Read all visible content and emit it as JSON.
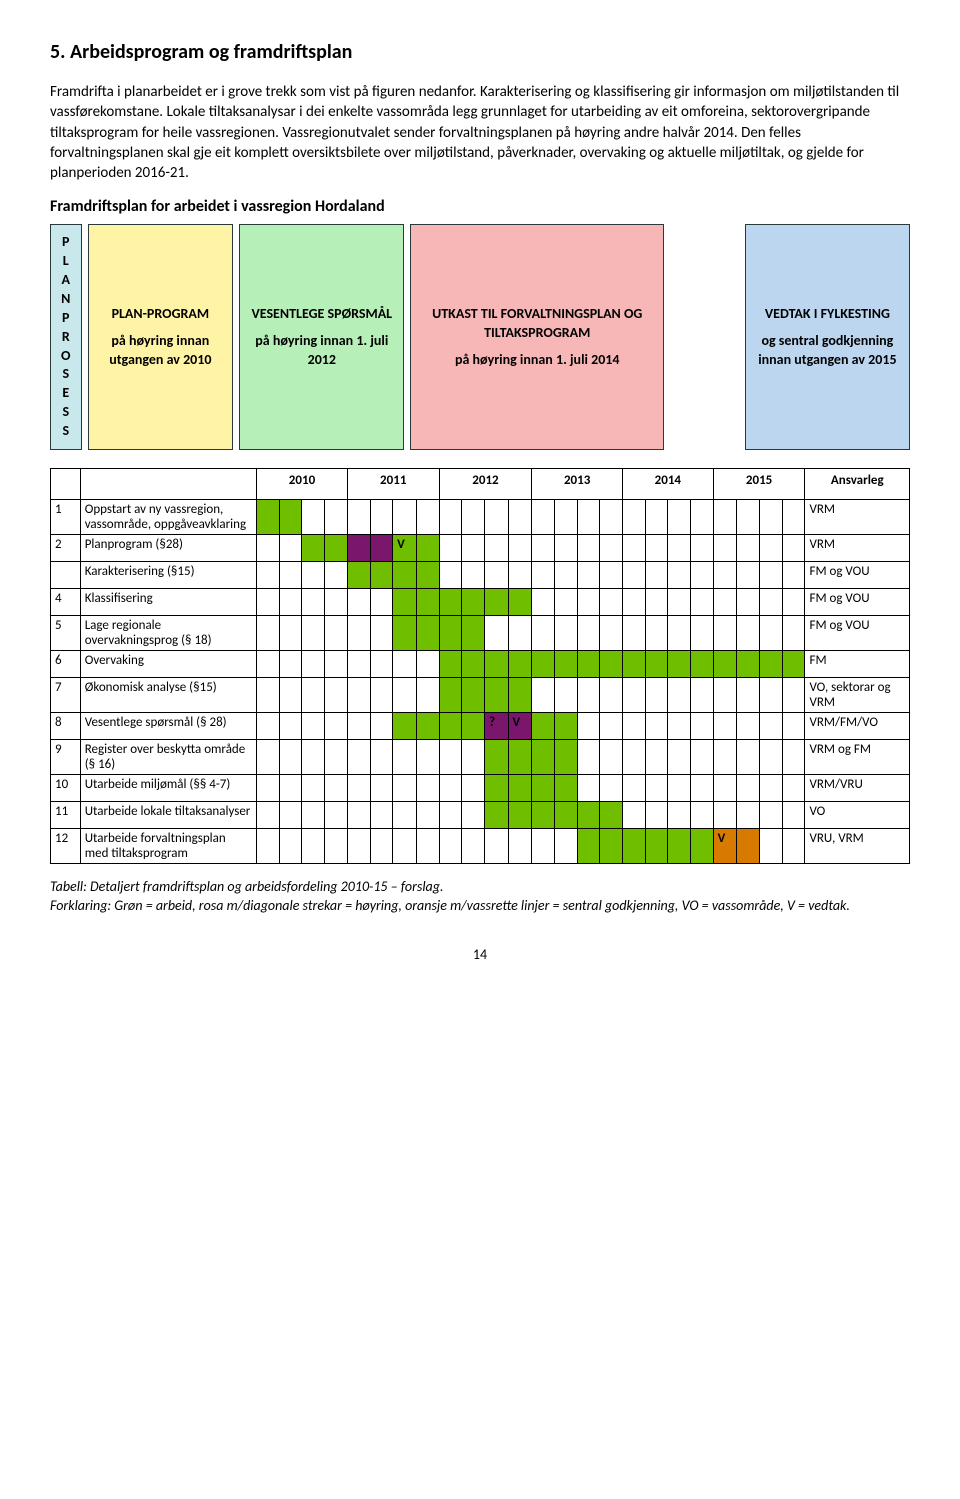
{
  "heading": "5. Arbeidsprogram og framdriftsplan",
  "intro": "Framdrifta i planarbeidet er i grove trekk som vist på figuren nedanfor. Karakterisering og klassifisering gir informasjon om miljøtilstanden til vassførekomstane. Lokale tiltaksanalysar i dei enkelte vassområda legg grunnlaget for utarbeiding av eit omforeina, sektorovergripande tiltaksprogram for heile vassregionen. Vassregionutvalet sender forvaltningsplanen på høyring andre halvår 2014. Den felles forvaltningsplanen skal gje eit komplett oversiktsbilete over miljøtilstand, påverknader, overvaking og aktuelle miljøtiltak, og gjelde for planperioden 2016-21.",
  "section_title": "Framdriftsplan for arbeidet i vassregion Hordaland",
  "flow": {
    "vertical": "PLANPROSESS",
    "a": {
      "title": "PLAN-PROGRAM",
      "sub": "på høyring innan utgangen av 2010"
    },
    "b": {
      "title": "VESENTLEGE SPØRSMÅL",
      "sub": "på høyring innan 1. juli 2012",
      "underline": "1"
    },
    "c": {
      "title": "UTKAST TIL FORVALTNINGSPLAN OG TILTAKSPROGRAM",
      "sub": "på høyring innan 1. juli 2014"
    },
    "d": {
      "title": "VEDTAK I FYLKESTING",
      "sub": "og sentral godkjenning innan utgangen av 2015"
    }
  },
  "gantt": {
    "years": [
      "2010",
      "2011",
      "2012",
      "2013",
      "2014",
      "2015"
    ],
    "ans_header": "Ansvarleg",
    "rows": [
      {
        "n": "1",
        "task": "Oppstart av ny vassregion, vassområde, oppgåveavklaring",
        "ans": "VRM",
        "cells": [
          "g",
          "g",
          "",
          "",
          "",
          "",
          "",
          "",
          "",
          "",
          "",
          "",
          "",
          "",
          "",
          "",
          "",
          "",
          "",
          "",
          "",
          "",
          "",
          ""
        ]
      },
      {
        "n": "2",
        "task": "Planprogram (§28)",
        "ans": "VRM",
        "cells": [
          "",
          "",
          "g",
          "g",
          "p",
          "p",
          "Vg",
          "g",
          "",
          "",
          "",
          "",
          "",
          "",
          "",
          "",
          "",
          "",
          "",
          "",
          "",
          "",
          "",
          ""
        ]
      },
      {
        "n": "",
        "task": "Karakterisering (§15)",
        "ans": "FM og VOU",
        "cells": [
          "",
          "",
          "",
          "",
          "g",
          "g",
          "g",
          "g",
          "",
          "",
          "",
          "",
          "",
          "",
          "",
          "",
          "",
          "",
          "",
          "",
          "",
          "",
          "",
          ""
        ]
      },
      {
        "n": "4",
        "task": "Klassifisering",
        "ans": "FM og VOU",
        "cells": [
          "",
          "",
          "",
          "",
          "",
          "",
          "g",
          "g",
          "g",
          "g",
          "g",
          "g",
          "",
          "",
          "",
          "",
          "",
          "",
          "",
          "",
          "",
          "",
          "",
          ""
        ]
      },
      {
        "n": "5",
        "task": "Lage regionale overvakningsprog (§ 18)",
        "ans": "FM og VOU",
        "cells": [
          "",
          "",
          "",
          "",
          "",
          "",
          "g",
          "g",
          "g",
          "g",
          "",
          "",
          "",
          "",
          "",
          "",
          "",
          "",
          "",
          "",
          "",
          "",
          "",
          ""
        ]
      },
      {
        "n": "6",
        "task": "Overvaking",
        "ans": "FM",
        "cells": [
          "",
          "",
          "",
          "",
          "",
          "",
          "",
          "",
          "g",
          "g",
          "g",
          "g",
          "g",
          "g",
          "g",
          "g",
          "g",
          "g",
          "g",
          "g",
          "g",
          "g",
          "g",
          "g"
        ]
      },
      {
        "n": "7",
        "task": "Økonomisk analyse (§15)",
        "ans": "VO, sektorar og VRM",
        "cells": [
          "",
          "",
          "",
          "",
          "",
          "",
          "",
          "",
          "g",
          "g",
          "g",
          "g",
          "",
          "",
          "",
          "",
          "",
          "",
          "",
          "",
          "",
          "",
          "",
          ""
        ]
      },
      {
        "n": "8",
        "task": "Vesentlege spørsmål (§ 28)",
        "ans": "VRM/FM/VO",
        "cells": [
          "",
          "",
          "",
          "",
          "",
          "",
          "g",
          "g",
          "g",
          "g",
          "p?",
          "Vp",
          "g",
          "g",
          "",
          "",
          "",
          "",
          "",
          "",
          "",
          "",
          "",
          ""
        ]
      },
      {
        "n": "9",
        "task": "Register over beskytta område (§ 16)",
        "ans": "VRM og FM",
        "cells": [
          "",
          "",
          "",
          "",
          "",
          "",
          "",
          "",
          "",
          "",
          "g",
          "g",
          "g",
          "g",
          "",
          "",
          "",
          "",
          "",
          "",
          "",
          "",
          "",
          ""
        ]
      },
      {
        "n": "10",
        "task": "Utarbeide miljømål (§§ 4-7)",
        "ans": "VRM/VRU",
        "cells": [
          "",
          "",
          "",
          "",
          "",
          "",
          "",
          "",
          "",
          "",
          "g",
          "g",
          "g",
          "g",
          "",
          "",
          "",
          "",
          "",
          "",
          "",
          "",
          "",
          ""
        ]
      },
      {
        "n": "11",
        "task": "Utarbeide lokale tiltaksanalyser",
        "ans": "VO",
        "cells": [
          "",
          "",
          "",
          "",
          "",
          "",
          "",
          "",
          "",
          "",
          "g",
          "g",
          "g",
          "g",
          "g",
          "g",
          "",
          "",
          "",
          "",
          "",
          "",
          "",
          ""
        ]
      },
      {
        "n": "12",
        "task": "Utarbeide forvaltningsplan med tiltaksprogram",
        "ans": "VRU, VRM",
        "cells": [
          "",
          "",
          "",
          "",
          "",
          "",
          "",
          "",
          "",
          "",
          "",
          "",
          "",
          "",
          "g",
          "g",
          "g",
          "g",
          "g",
          "g",
          "Vo",
          "o",
          "",
          ""
        ]
      }
    ]
  },
  "caption": "Tabell: Detaljert framdriftsplan og arbeidsfordeling 2010-15 – forslag.\nForklaring: Grøn = arbeid, rosa m/diagonale strekar = høyring, oransje m/vassrette linjer = sentral godkjenning, VO = vassområde, V = vedtak.",
  "page": "14",
  "colors": {
    "green": "#6fbf00",
    "purple": "#7a176d",
    "orange": "#d97a00",
    "flow_v": "#c8e8ec",
    "flow_a": "#fff4a6",
    "flow_b": "#b7efb8",
    "flow_c": "#f7b7b7",
    "flow_d": "#bdd6f0"
  }
}
